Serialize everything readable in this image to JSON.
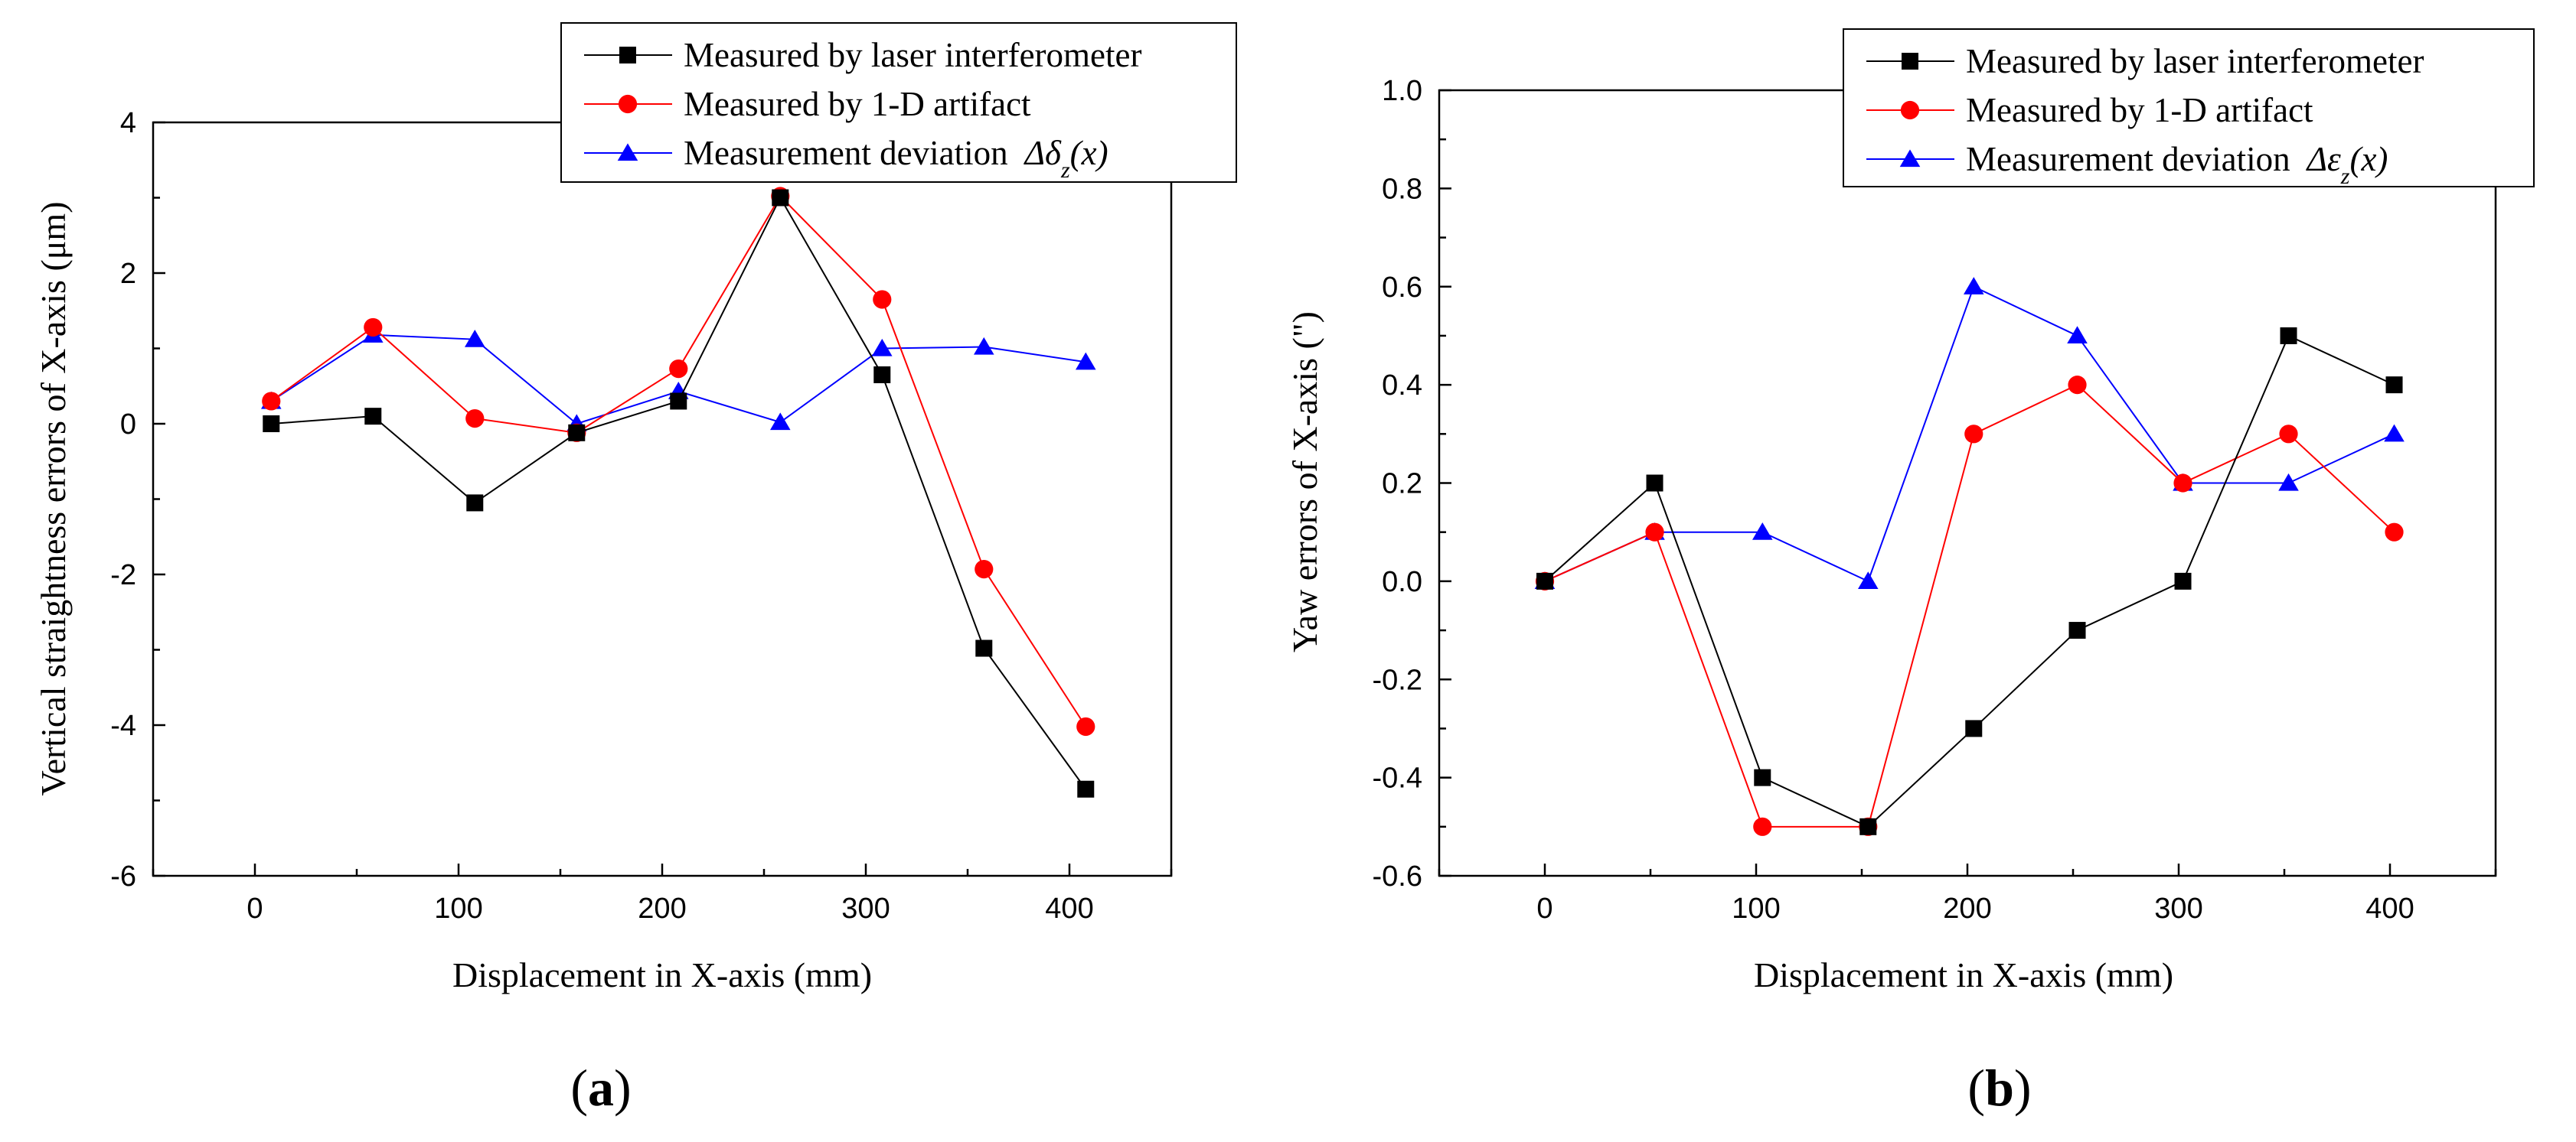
{
  "chart_data": [
    {
      "type": "line",
      "panel_label": "a",
      "xlabel": "Displacement in X-axis (mm)",
      "ylabel": "Vertical straightness errors of X-axis (μm)",
      "xlim": [
        -50,
        450
      ],
      "ylim": [
        -6,
        4
      ],
      "xticks": [
        0,
        100,
        200,
        300,
        400
      ],
      "yticks": [
        -6,
        -4,
        -2,
        0,
        2,
        4
      ],
      "legend_position": "top-right",
      "series": [
        {
          "name": "Measured by laser interferometer",
          "marker": "square",
          "color": "#000000",
          "x": [
            8,
            58,
            108,
            158,
            208,
            258,
            308,
            358,
            408
          ],
          "values": [
            0.0,
            0.1,
            -1.05,
            -0.12,
            0.3,
            3.0,
            0.65,
            -2.98,
            -4.85
          ]
        },
        {
          "name": "Measured by 1-D artifact",
          "marker": "circle",
          "color": "#ff0000",
          "x": [
            8,
            58,
            108,
            158,
            208,
            258,
            308,
            358,
            408
          ],
          "values": [
            0.3,
            1.28,
            0.07,
            -0.12,
            0.73,
            3.02,
            1.65,
            -1.93,
            -4.02
          ]
        },
        {
          "name": "Measurement deviation",
          "legend_math": "Δδ_z(x)",
          "marker": "triangle",
          "color": "#0000ff",
          "x": [
            8,
            58,
            108,
            158,
            208,
            258,
            308,
            358,
            408
          ],
          "values": [
            0.3,
            1.18,
            1.12,
            0.0,
            0.43,
            0.02,
            1.0,
            1.02,
            0.82
          ]
        }
      ]
    },
    {
      "type": "line",
      "panel_label": "b",
      "xlabel": "Displacement in X-axis (mm)",
      "ylabel": "Yaw errors of X-axis (\")",
      "xlim": [
        -50,
        450
      ],
      "ylim": [
        -0.6,
        1.0
      ],
      "xticks": [
        0,
        100,
        200,
        300,
        400
      ],
      "yticks": [
        -0.6,
        -0.4,
        -0.2,
        0.0,
        0.2,
        0.4,
        0.6,
        0.8,
        1.0
      ],
      "legend_position": "top-right",
      "series": [
        {
          "name": "Measured by laser interferometer",
          "marker": "square",
          "color": "#000000",
          "x": [
            0,
            52,
            103,
            153,
            203,
            252,
            302,
            352,
            402
          ],
          "values": [
            0.0,
            0.2,
            -0.4,
            -0.5,
            -0.3,
            -0.1,
            0.0,
            0.5,
            0.4
          ]
        },
        {
          "name": "Measured by 1-D artifact",
          "marker": "circle",
          "color": "#ff0000",
          "x": [
            0,
            52,
            103,
            153,
            203,
            252,
            302,
            352,
            402
          ],
          "values": [
            0.0,
            0.1,
            -0.5,
            -0.5,
            0.3,
            0.4,
            0.2,
            0.3,
            0.1
          ]
        },
        {
          "name": "Measurement deviation",
          "legend_math": "Δε_z(x)",
          "marker": "triangle",
          "color": "#0000ff",
          "x": [
            0,
            52,
            103,
            153,
            203,
            252,
            302,
            352,
            402
          ],
          "values": [
            0.0,
            0.1,
            0.1,
            0.0,
            0.6,
            0.5,
            0.2,
            0.2,
            0.3
          ]
        }
      ]
    }
  ]
}
